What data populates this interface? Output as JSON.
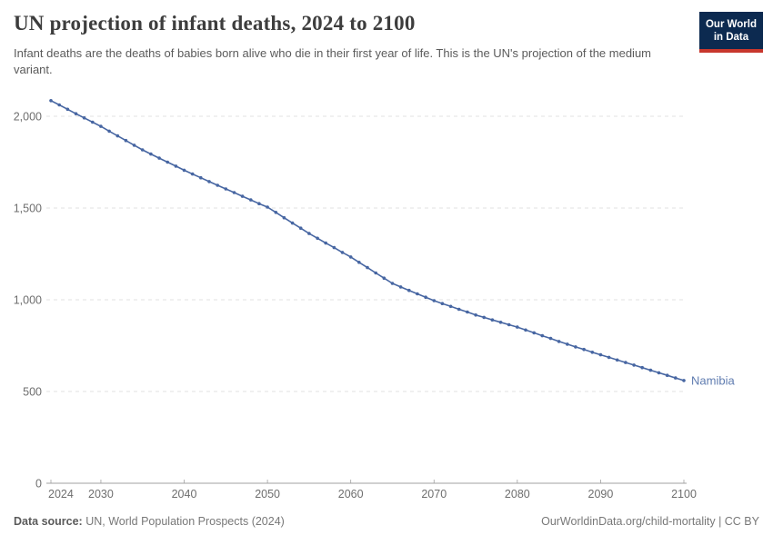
{
  "header": {
    "title": "UN projection of infant deaths, 2024 to 2100",
    "subtitle": "Infant deaths are the deaths of babies born alive who die in their first year of life. This is the UN's projection of the medium variant.",
    "logo": {
      "line1": "Our World",
      "line2": "in Data"
    }
  },
  "chart_data": {
    "type": "line",
    "title": "UN projection of infant deaths, 2024 to 2100",
    "entity_label": "Namibia",
    "xlabel": "",
    "ylabel": "",
    "xlim": [
      2024,
      2100
    ],
    "ylim": [
      0,
      2100
    ],
    "grid": "horizontal-dashed",
    "legend_position": "end-of-line",
    "y_ticks": [
      0,
      500,
      1000,
      1500,
      2000
    ],
    "y_tick_labels": [
      "0",
      "500",
      "1,000",
      "1,500",
      "2,000"
    ],
    "x_ticks": [
      2024,
      2030,
      2040,
      2050,
      2060,
      2070,
      2080,
      2090,
      2100
    ],
    "x_tick_labels": [
      "2024",
      "2030",
      "2040",
      "2050",
      "2060",
      "2070",
      "2080",
      "2090",
      "2100"
    ],
    "series": [
      {
        "name": "Namibia",
        "x": [
          2024,
          2025,
          2026,
          2027,
          2028,
          2029,
          2030,
          2031,
          2032,
          2033,
          2034,
          2035,
          2036,
          2037,
          2038,
          2039,
          2040,
          2041,
          2042,
          2043,
          2044,
          2045,
          2046,
          2047,
          2048,
          2049,
          2050,
          2051,
          2052,
          2053,
          2054,
          2055,
          2056,
          2057,
          2058,
          2059,
          2060,
          2061,
          2062,
          2063,
          2064,
          2065,
          2066,
          2067,
          2068,
          2069,
          2070,
          2071,
          2072,
          2073,
          2074,
          2075,
          2076,
          2077,
          2078,
          2079,
          2080,
          2081,
          2082,
          2083,
          2084,
          2085,
          2086,
          2087,
          2088,
          2089,
          2090,
          2091,
          2092,
          2093,
          2094,
          2095,
          2096,
          2097,
          2098,
          2099,
          2100
        ],
        "values": [
          2085,
          2062,
          2038,
          2014,
          1991,
          1968,
          1945,
          1919,
          1893,
          1868,
          1842,
          1817,
          1794,
          1772,
          1750,
          1728,
          1706,
          1685,
          1665,
          1644,
          1624,
          1604,
          1584,
          1564,
          1544,
          1524,
          1505,
          1476,
          1447,
          1418,
          1390,
          1361,
          1335,
          1309,
          1284,
          1258,
          1233,
          1204,
          1175,
          1146,
          1118,
          1089,
          1070,
          1051,
          1032,
          1014,
          995,
          979,
          964,
          948,
          933,
          917,
          904,
          890,
          877,
          864,
          851,
          835,
          820,
          804,
          789,
          773,
          758,
          743,
          729,
          714,
          700,
          686,
          672,
          658,
          644,
          630,
          616,
          602,
          588,
          574,
          560
        ]
      }
    ]
  },
  "footer": {
    "source_label": "Data source:",
    "source_value": " UN, World Population Prospects (2024)",
    "credit": "OurWorldinData.org/child-mortality | CC BY"
  },
  "colors": {
    "line": "#4766a2",
    "entity_label": "#5f7cb0",
    "grid": "#e2e2e2",
    "axis": "#a1a1a1",
    "tick_label": "#6e6e6e",
    "logo_bg": "#0c2a50",
    "logo_accent": "#c8372d"
  }
}
